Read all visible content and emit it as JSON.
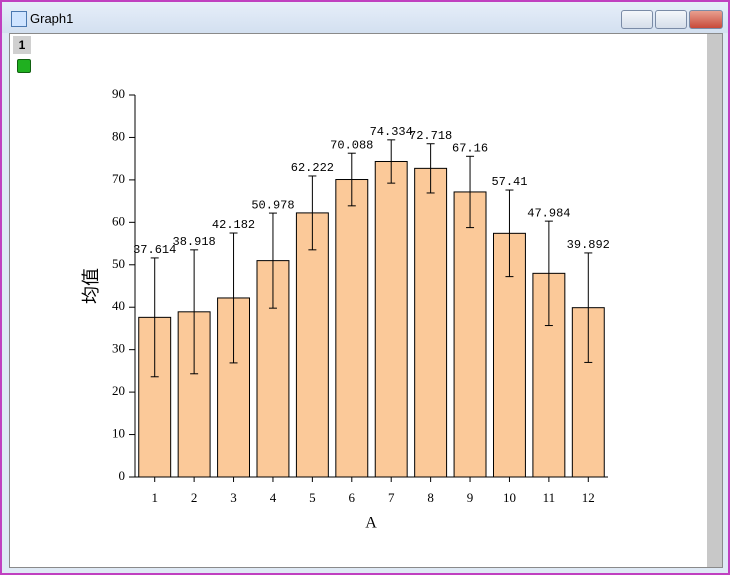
{
  "window": {
    "title": "Graph1",
    "layer_label": "1"
  },
  "chart_data": {
    "type": "bar",
    "xlabel": "A",
    "ylabel": "均值",
    "categories": [
      "1",
      "2",
      "3",
      "4",
      "5",
      "6",
      "7",
      "8",
      "9",
      "10",
      "11",
      "12"
    ],
    "values": [
      37.614,
      38.918,
      42.182,
      50.978,
      62.222,
      70.088,
      74.334,
      72.718,
      67.16,
      57.41,
      47.984,
      39.892
    ],
    "errors": [
      14,
      14.6,
      15.3,
      11.2,
      8.7,
      6.2,
      5.1,
      5.8,
      8.4,
      10.2,
      12.3,
      12.9
    ],
    "color": "#fbc999",
    "error_color": "#000000",
    "ylim": [
      0,
      90
    ],
    "yticks": [
      0,
      10,
      20,
      30,
      40,
      50,
      60,
      70,
      80,
      90
    ],
    "grid": false
  }
}
